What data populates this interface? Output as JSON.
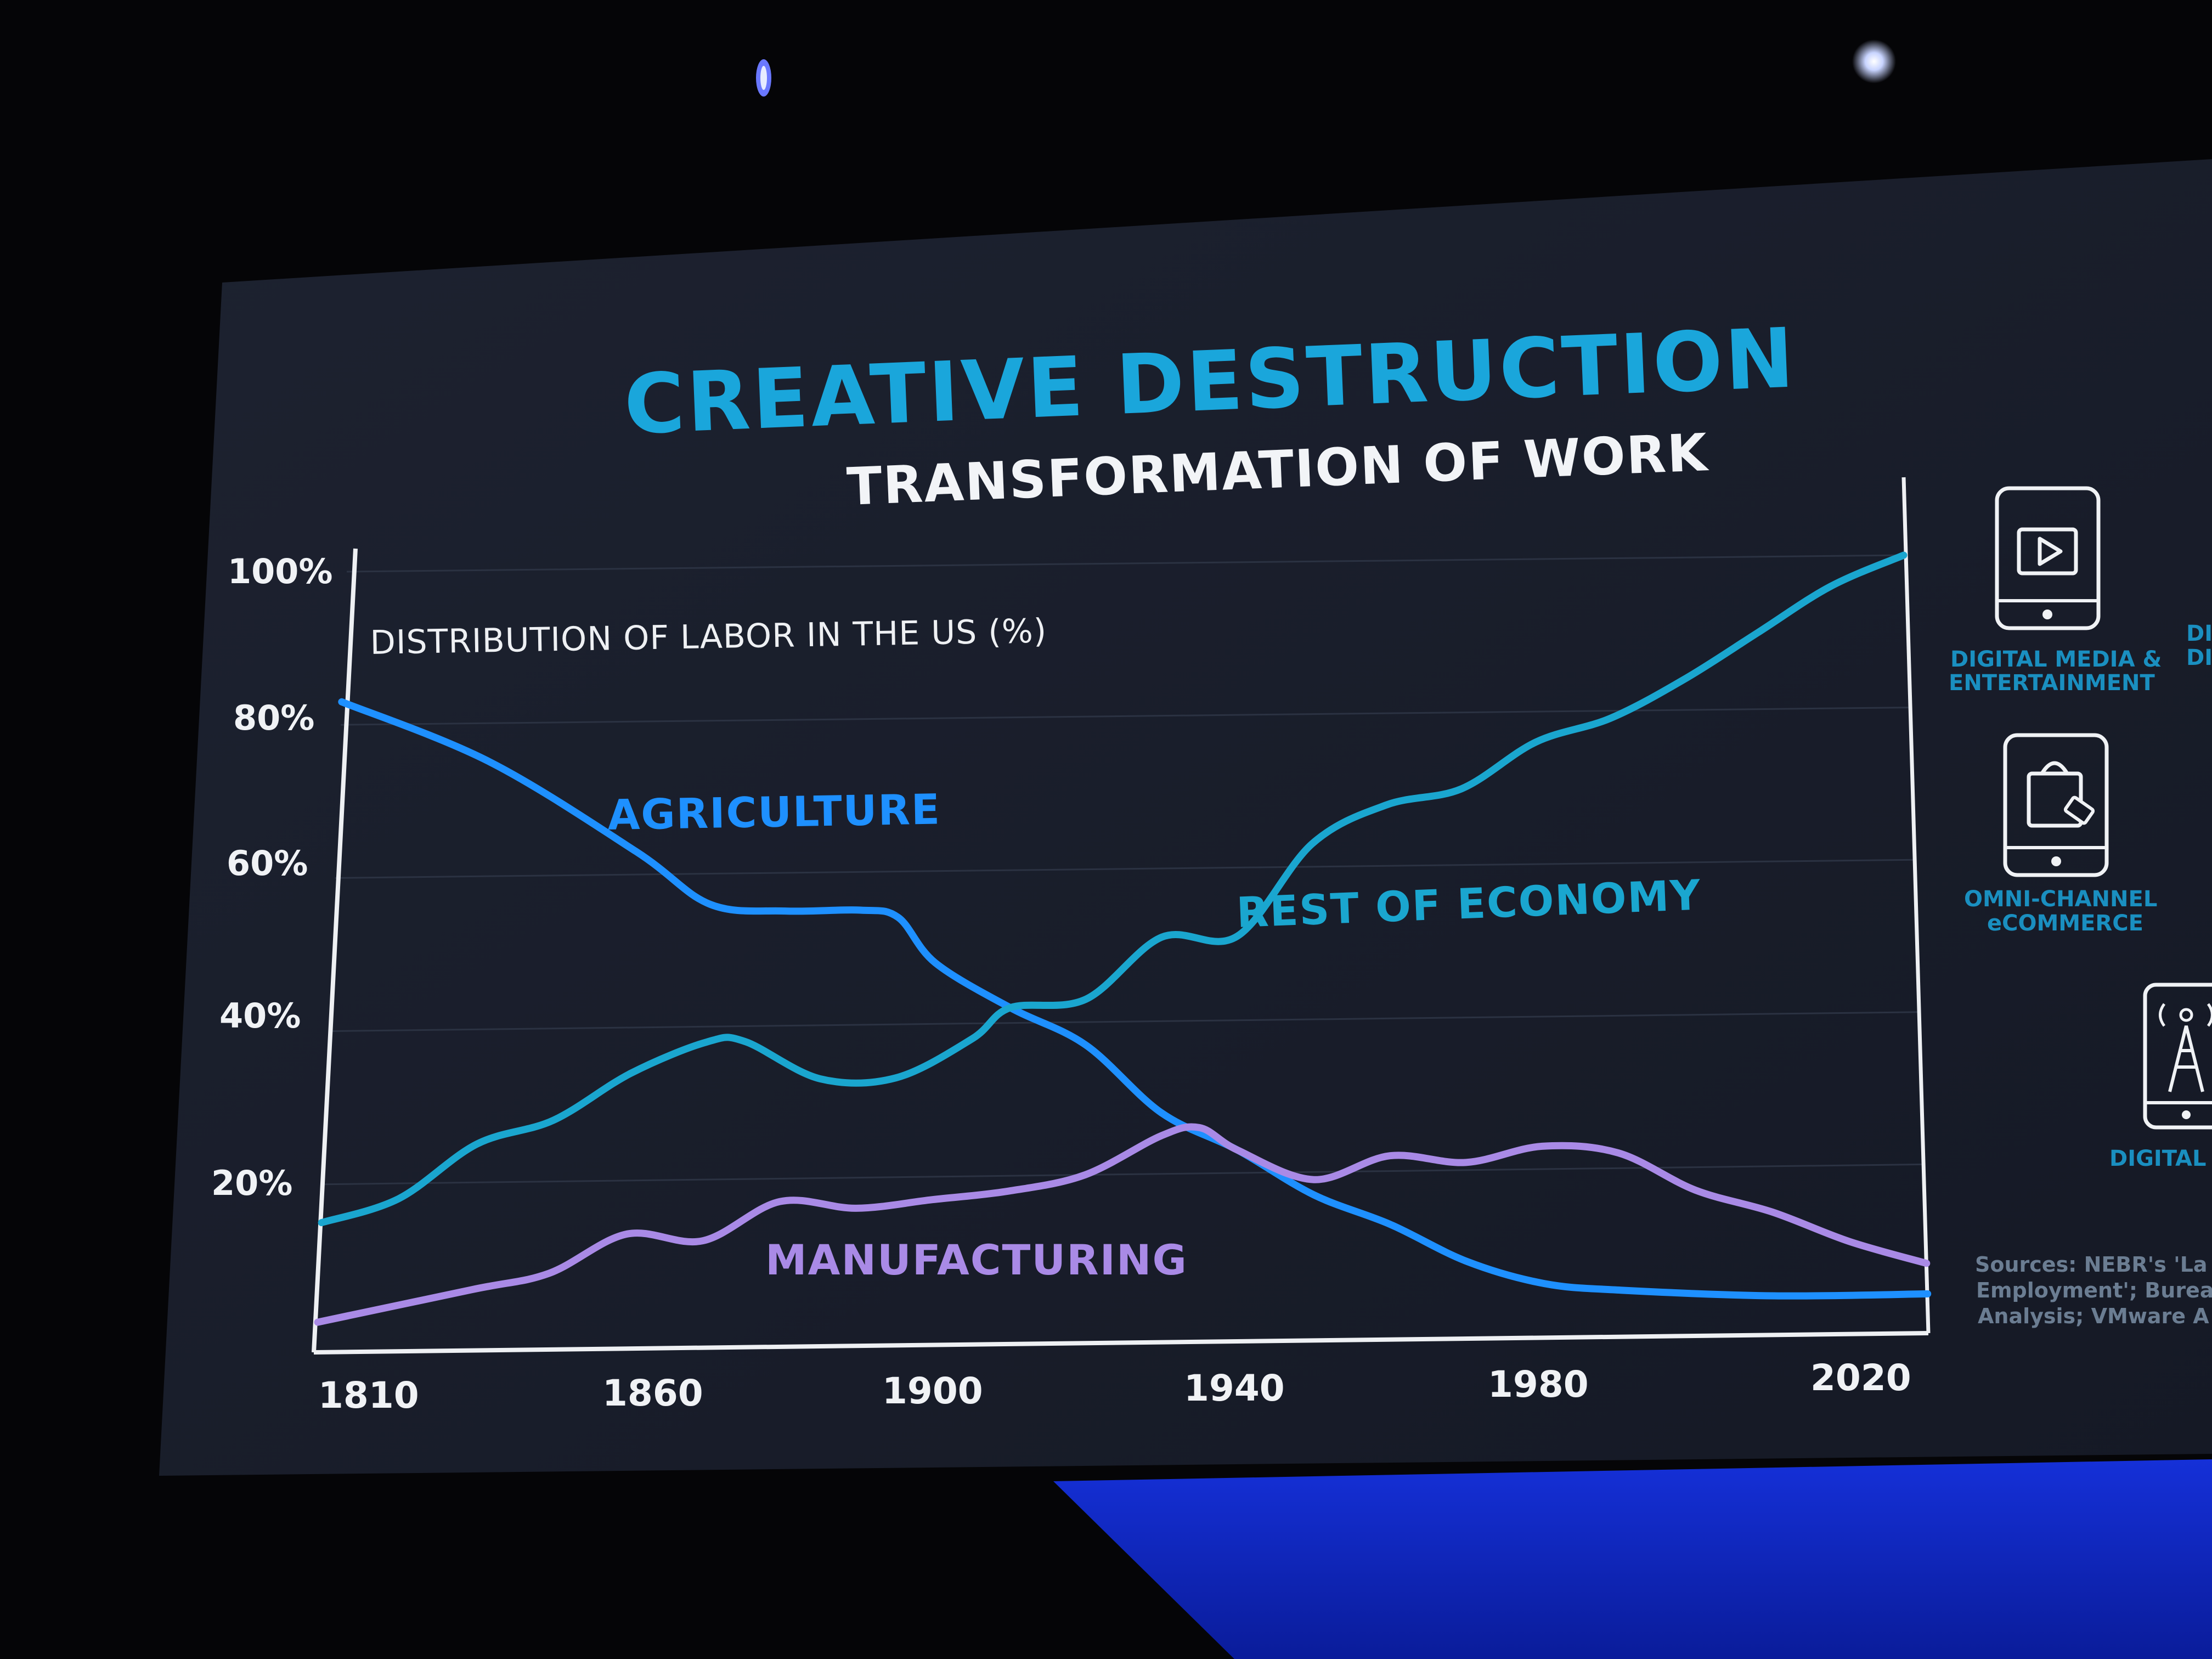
{
  "slide": {
    "title": "CREATIVE DESTRUCTION",
    "subtitle": "TRANSFORMATION OF WORK",
    "caption": "DISTRIBUTION OF LABOR IN THE US (%)"
  },
  "chart_data": {
    "type": "line",
    "title": "CREATIVE DESTRUCTION",
    "subtitle": "TRANSFORMATION OF WORK",
    "caption": "DISTRIBUTION OF LABOR IN THE US (%)",
    "xlabel": "",
    "ylabel": "",
    "x_ticks": [
      1810,
      1860,
      1900,
      1940,
      1980,
      2020
    ],
    "y_ticks": [
      "20%",
      "40%",
      "60%",
      "80%",
      "100%"
    ],
    "ylim": [
      0,
      100
    ],
    "grid": true,
    "series": [
      {
        "name": "AGRICULTURE",
        "color": "#1e90ff",
        "points": [
          [
            1810,
            83
          ],
          [
            1830,
            75
          ],
          [
            1850,
            63
          ],
          [
            1860,
            56
          ],
          [
            1870,
            55
          ],
          [
            1880,
            55
          ],
          [
            1885,
            54
          ],
          [
            1890,
            48
          ],
          [
            1900,
            42
          ],
          [
            1910,
            37
          ],
          [
            1920,
            28
          ],
          [
            1930,
            23
          ],
          [
            1940,
            17
          ],
          [
            1950,
            13
          ],
          [
            1960,
            8
          ],
          [
            1970,
            5
          ],
          [
            1980,
            4
          ],
          [
            2000,
            3
          ],
          [
            2020,
            3
          ]
        ]
      },
      {
        "name": "REST OF ECONOMY",
        "color": "#1aa6cf",
        "points": [
          [
            1810,
            15
          ],
          [
            1820,
            18
          ],
          [
            1830,
            25
          ],
          [
            1840,
            28
          ],
          [
            1850,
            34
          ],
          [
            1860,
            38
          ],
          [
            1865,
            38
          ],
          [
            1875,
            33
          ],
          [
            1885,
            33
          ],
          [
            1895,
            38
          ],
          [
            1900,
            42
          ],
          [
            1910,
            43
          ],
          [
            1920,
            51
          ],
          [
            1930,
            51
          ],
          [
            1940,
            63
          ],
          [
            1950,
            68
          ],
          [
            1960,
            70
          ],
          [
            1970,
            76
          ],
          [
            1980,
            79
          ],
          [
            1990,
            84
          ],
          [
            2000,
            90
          ],
          [
            2010,
            96
          ],
          [
            2020,
            100
          ]
        ]
      },
      {
        "name": "MANUFACTURING",
        "color": "#a98ae6",
        "points": [
          [
            1810,
            2
          ],
          [
            1830,
            6
          ],
          [
            1840,
            8
          ],
          [
            1850,
            13
          ],
          [
            1860,
            12
          ],
          [
            1870,
            17
          ],
          [
            1880,
            16
          ],
          [
            1890,
            17
          ],
          [
            1900,
            18
          ],
          [
            1910,
            20
          ],
          [
            1920,
            25
          ],
          [
            1925,
            26
          ],
          [
            1930,
            23
          ],
          [
            1940,
            19
          ],
          [
            1950,
            22
          ],
          [
            1960,
            21
          ],
          [
            1970,
            23
          ],
          [
            1980,
            22
          ],
          [
            1990,
            17
          ],
          [
            2000,
            14
          ],
          [
            2010,
            10
          ],
          [
            2020,
            7
          ]
        ]
      }
    ]
  },
  "icons": [
    {
      "icon": "tablet-play-icon",
      "label_lines": [
        "DIGITAL MEDIA &",
        "ENTERTAINMENT"
      ]
    },
    {
      "icon": "tablet-shopping-bag-icon",
      "label_lines": [
        "OMNI-CHANNEL",
        "eCOMMERCE"
      ]
    },
    {
      "icon": "tablet-antenna-icon",
      "label_lines": [
        "DIGITAL"
      ]
    }
  ],
  "sources": [
    "Sources: NEBR's 'La",
    "Employment'; Burea",
    "Analysis; VMware A"
  ],
  "colors": {
    "title": "#1aa6db",
    "agriculture": "#1e90ff",
    "rest_of_economy": "#1aa6cf",
    "manufacturing": "#a98ae6"
  }
}
